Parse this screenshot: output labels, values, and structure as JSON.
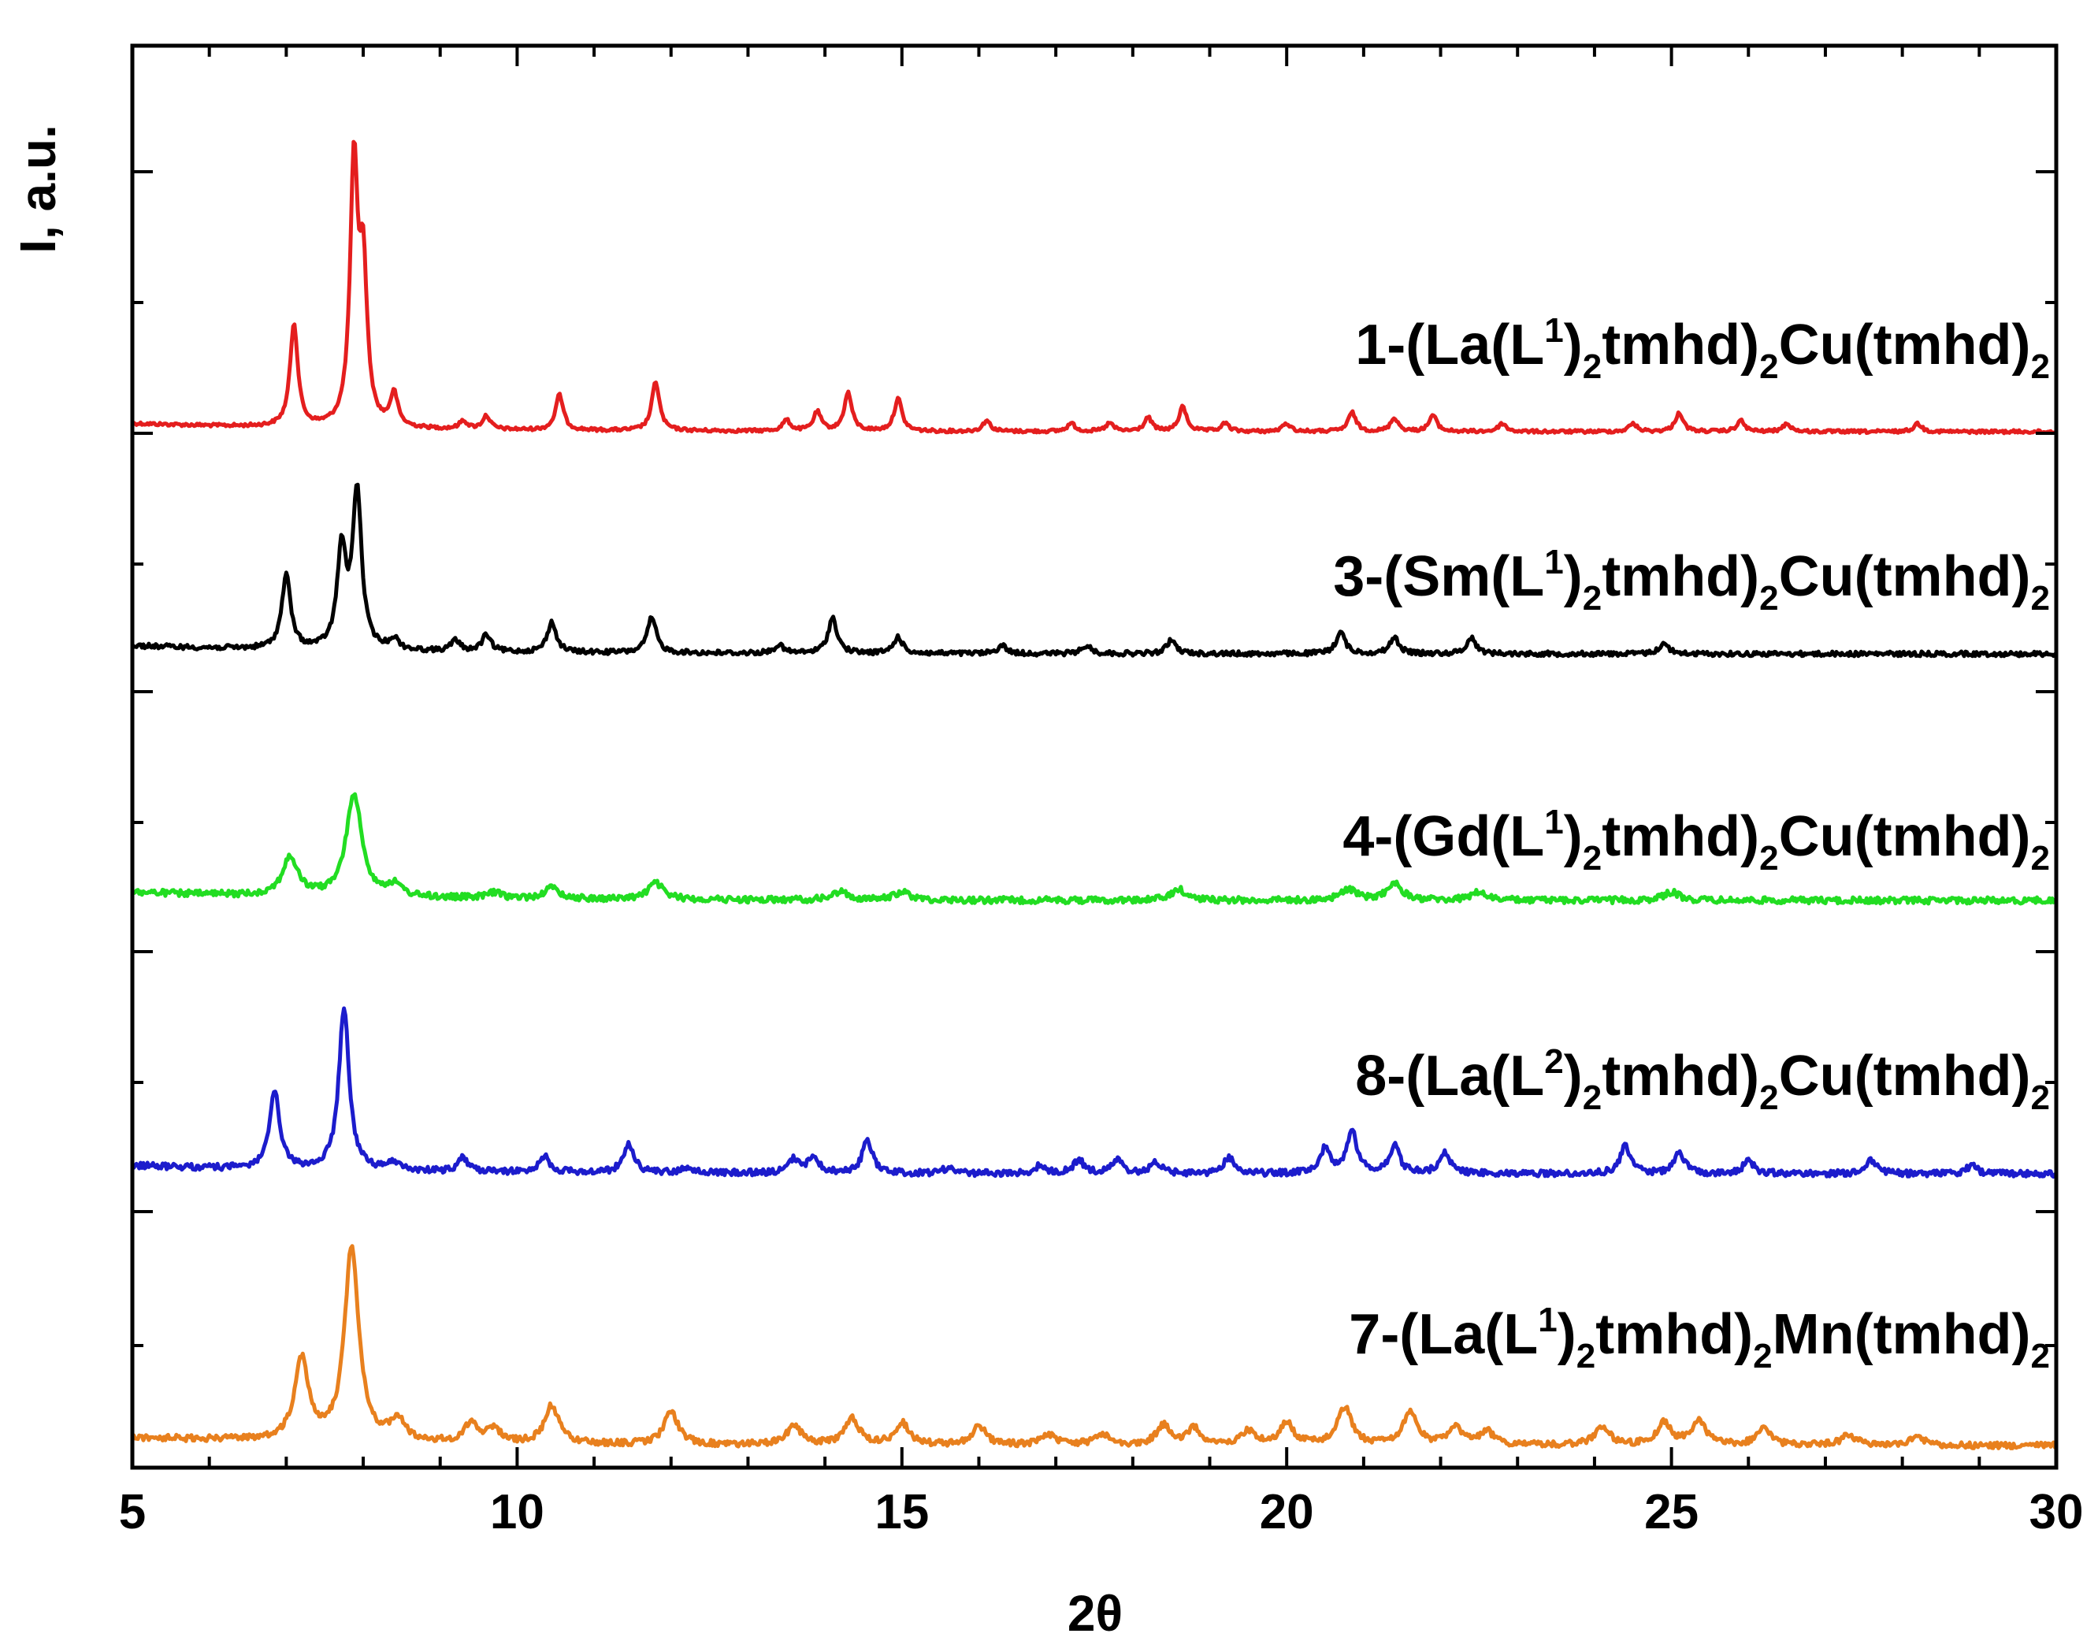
{
  "chart_data": {
    "type": "line",
    "xlabel": "2θ",
    "ylabel": "I, a.u.",
    "xlim": [
      5,
      30
    ],
    "x_ticks": [
      "5",
      "10",
      "15",
      "20",
      "25",
      "30"
    ],
    "grid": false,
    "legend": "inline labels above each trace (right side)",
    "series": [
      {
        "name": "1-(La(L1)2tmhd)2Cu(tmhd)2",
        "label_parts": {
          "pre": "1-(La(L",
          "sup": "1",
          "mid": ")",
          "sub1": "2",
          "mid2": "tmhd)",
          "sub2": "2",
          "post": "Cu(tmhd)",
          "sub3": "2"
        },
        "color": "#e41e1e",
        "peaks": [
          [
            7.1,
            0.38
          ],
          [
            7.88,
            0.95
          ],
          [
            8.0,
            0.55
          ],
          [
            8.4,
            0.12
          ],
          [
            9.3,
            0.03
          ],
          [
            9.6,
            0.05
          ],
          [
            10.55,
            0.13
          ],
          [
            11.8,
            0.18
          ],
          [
            13.5,
            0.04
          ],
          [
            13.9,
            0.07
          ],
          [
            14.3,
            0.14
          ],
          [
            14.95,
            0.12
          ],
          [
            16.1,
            0.04
          ],
          [
            17.2,
            0.03
          ],
          [
            17.7,
            0.03
          ],
          [
            18.2,
            0.05
          ],
          [
            18.65,
            0.09
          ],
          [
            19.2,
            0.03
          ],
          [
            20.0,
            0.03
          ],
          [
            20.85,
            0.07
          ],
          [
            21.4,
            0.05
          ],
          [
            21.9,
            0.06
          ],
          [
            22.8,
            0.03
          ],
          [
            24.5,
            0.03
          ],
          [
            25.1,
            0.07
          ],
          [
            25.9,
            0.04
          ],
          [
            26.5,
            0.03
          ],
          [
            28.2,
            0.03
          ]
        ]
      },
      {
        "name": "3-(Sm(L1)2tmhd)2Cu(tmhd)2",
        "label_parts": {
          "pre": "3-(Sm(L",
          "sup": "1",
          "mid": ")",
          "sub1": "2",
          "mid2": "tmhd)",
          "sub2": "2",
          "post": "Cu(tmhd)",
          "sub3": "2"
        },
        "color": "#000000",
        "peaks": [
          [
            7.0,
            0.27
          ],
          [
            7.72,
            0.36
          ],
          [
            7.92,
            0.58
          ],
          [
            8.4,
            0.04
          ],
          [
            9.2,
            0.04
          ],
          [
            9.6,
            0.06
          ],
          [
            10.45,
            0.11
          ],
          [
            11.75,
            0.13
          ],
          [
            13.4,
            0.03
          ],
          [
            14.1,
            0.13
          ],
          [
            14.95,
            0.06
          ],
          [
            16.3,
            0.03
          ],
          [
            17.4,
            0.03
          ],
          [
            18.5,
            0.05
          ],
          [
            20.7,
            0.08
          ],
          [
            21.4,
            0.06
          ],
          [
            22.4,
            0.06
          ],
          [
            24.9,
            0.04
          ]
        ]
      },
      {
        "name": "4-(Gd(L1)2tmhd)2Cu(tmhd)2",
        "label_parts": {
          "pre": "4-(Gd(L",
          "sup": "1",
          "mid": ")",
          "sub1": "2",
          "mid2": "tmhd)",
          "sub2": "2",
          "post": "Cu(tmhd)",
          "sub3": "2"
        },
        "color": "#22dd22",
        "peaks": [
          [
            7.05,
            0.14
          ],
          [
            7.88,
            0.38
          ],
          [
            8.4,
            0.04
          ],
          [
            9.7,
            0.02
          ],
          [
            10.45,
            0.04
          ],
          [
            11.8,
            0.06
          ],
          [
            14.2,
            0.03
          ],
          [
            15.0,
            0.03
          ],
          [
            18.6,
            0.04
          ],
          [
            20.8,
            0.04
          ],
          [
            21.4,
            0.06
          ],
          [
            22.5,
            0.03
          ],
          [
            25.0,
            0.03
          ]
        ]
      },
      {
        "name": "8-(La(L2)2tmhd)2Cu(tmhd)2",
        "label_parts": {
          "pre": "8-(La(L",
          "sup": "2",
          "mid": ")",
          "sub1": "2",
          "mid2": "tmhd)",
          "sub2": "2",
          "post": "Cu(tmhd)",
          "sub3": "2"
        },
        "color": "#1c1ccc",
        "peaks": [
          [
            6.85,
            0.28
          ],
          [
            7.75,
            0.6
          ],
          [
            8.4,
            0.03
          ],
          [
            9.3,
            0.05
          ],
          [
            10.35,
            0.06
          ],
          [
            11.45,
            0.11
          ],
          [
            12.2,
            0.02
          ],
          [
            13.6,
            0.05
          ],
          [
            13.85,
            0.06
          ],
          [
            14.55,
            0.12
          ],
          [
            15.6,
            0.02
          ],
          [
            16.8,
            0.03
          ],
          [
            17.3,
            0.05
          ],
          [
            17.8,
            0.05
          ],
          [
            18.3,
            0.04
          ],
          [
            19.25,
            0.06
          ],
          [
            20.5,
            0.09
          ],
          [
            20.85,
            0.15
          ],
          [
            21.4,
            0.1
          ],
          [
            22.05,
            0.08
          ],
          [
            24.4,
            0.1
          ],
          [
            25.1,
            0.08
          ],
          [
            26.0,
            0.05
          ],
          [
            27.6,
            0.05
          ],
          [
            28.9,
            0.03
          ]
        ]
      },
      {
        "name": "7-(La(L1)2tmhd)2Mn(tmhd)2",
        "label_parts": {
          "pre": "7-(La(L",
          "sup": "1",
          "mid": ")",
          "sub1": "2",
          "mid2": "tmhd)",
          "sub2": "2",
          "post": "Mn(tmhd)",
          "sub3": "2"
        },
        "color": "#e8801e",
        "peaks": [
          [
            7.2,
            0.3
          ],
          [
            7.85,
            0.72
          ],
          [
            8.45,
            0.08
          ],
          [
            9.4,
            0.07
          ],
          [
            9.7,
            0.05
          ],
          [
            10.45,
            0.14
          ],
          [
            12.0,
            0.12
          ],
          [
            13.6,
            0.07
          ],
          [
            14.35,
            0.1
          ],
          [
            15.0,
            0.08
          ],
          [
            16.0,
            0.07
          ],
          [
            16.9,
            0.04
          ],
          [
            17.6,
            0.04
          ],
          [
            18.4,
            0.07
          ],
          [
            18.8,
            0.06
          ],
          [
            19.5,
            0.05
          ],
          [
            20.0,
            0.08
          ],
          [
            20.75,
            0.14
          ],
          [
            21.6,
            0.12
          ],
          [
            22.2,
            0.06
          ],
          [
            22.6,
            0.05
          ],
          [
            24.1,
            0.07
          ],
          [
            24.9,
            0.08
          ],
          [
            25.35,
            0.09
          ],
          [
            26.2,
            0.06
          ],
          [
            27.3,
            0.04
          ],
          [
            28.2,
            0.03
          ]
        ]
      }
    ]
  }
}
